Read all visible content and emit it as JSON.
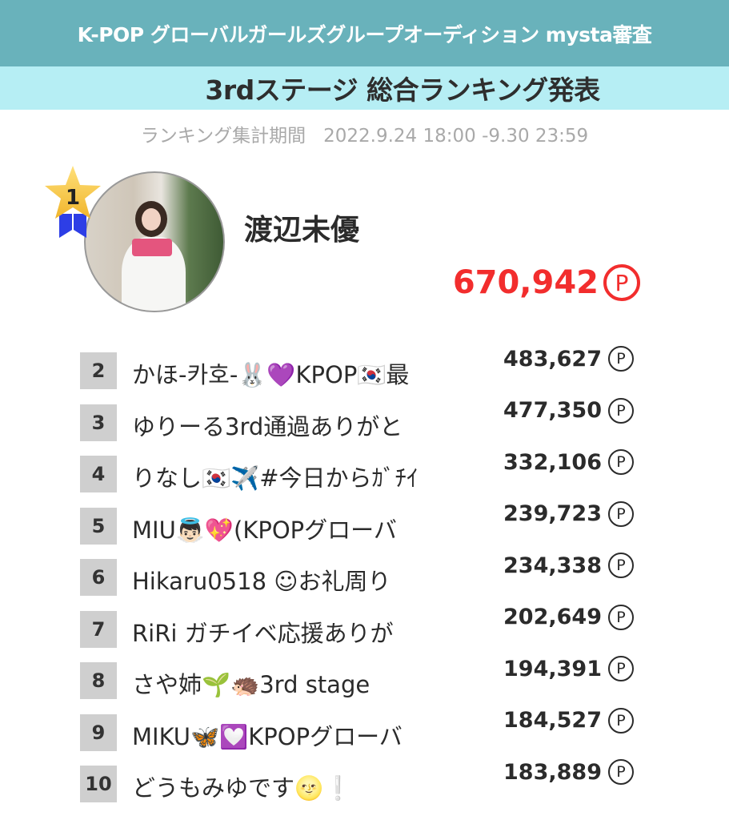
{
  "header": {
    "title": "K-POP グローバルガールズグループオーディション mysta審査"
  },
  "subheader": {
    "title": "3rdステージ 総合ランキング発表"
  },
  "period": {
    "label": "ランキング集計期間",
    "range": "2022.9.24 18:00 -9.30 23:59"
  },
  "winner": {
    "rank": "1",
    "name": "渡辺未優",
    "points": "670,942",
    "point_symbol": "Ⓟ",
    "badge_icon": "star-ribbon-icon",
    "accent": "#f22d2d"
  },
  "colors": {
    "header_bg": "#69b2bb",
    "subheader_bg": "#b6eef4",
    "rank_box": "#cfcfcf"
  },
  "rankings": [
    {
      "rank": "2",
      "name": "かほ-카호-🐰💜KPOP🇰🇷最",
      "points": "483,627"
    },
    {
      "rank": "3",
      "name": "ゆりーる3rd通過ありがと",
      "points": "477,350"
    },
    {
      "rank": "4",
      "name": "りなし🇰🇷✈️#今日からｶﾞﾁｲ",
      "points": "332,106"
    },
    {
      "rank": "5",
      "name": "MIU👼🏻💖(KPOPグローバ",
      "points": "239,723"
    },
    {
      "rank": "6",
      "name": "Hikaru0518 ☺お礼周り",
      "points": "234,338"
    },
    {
      "rank": "7",
      "name": "RiRi ガチイベ応援ありが",
      "points": "202,649"
    },
    {
      "rank": "8",
      "name": "さや姉🌱🦔3rd stage",
      "points": "194,391"
    },
    {
      "rank": "9",
      "name": "MIKU🦋💟KPOPグローバ",
      "points": "184,527"
    },
    {
      "rank": "10",
      "name": "どうもみゆです🌝❕",
      "points": "183,889"
    }
  ],
  "point_symbol": "Ⓟ"
}
